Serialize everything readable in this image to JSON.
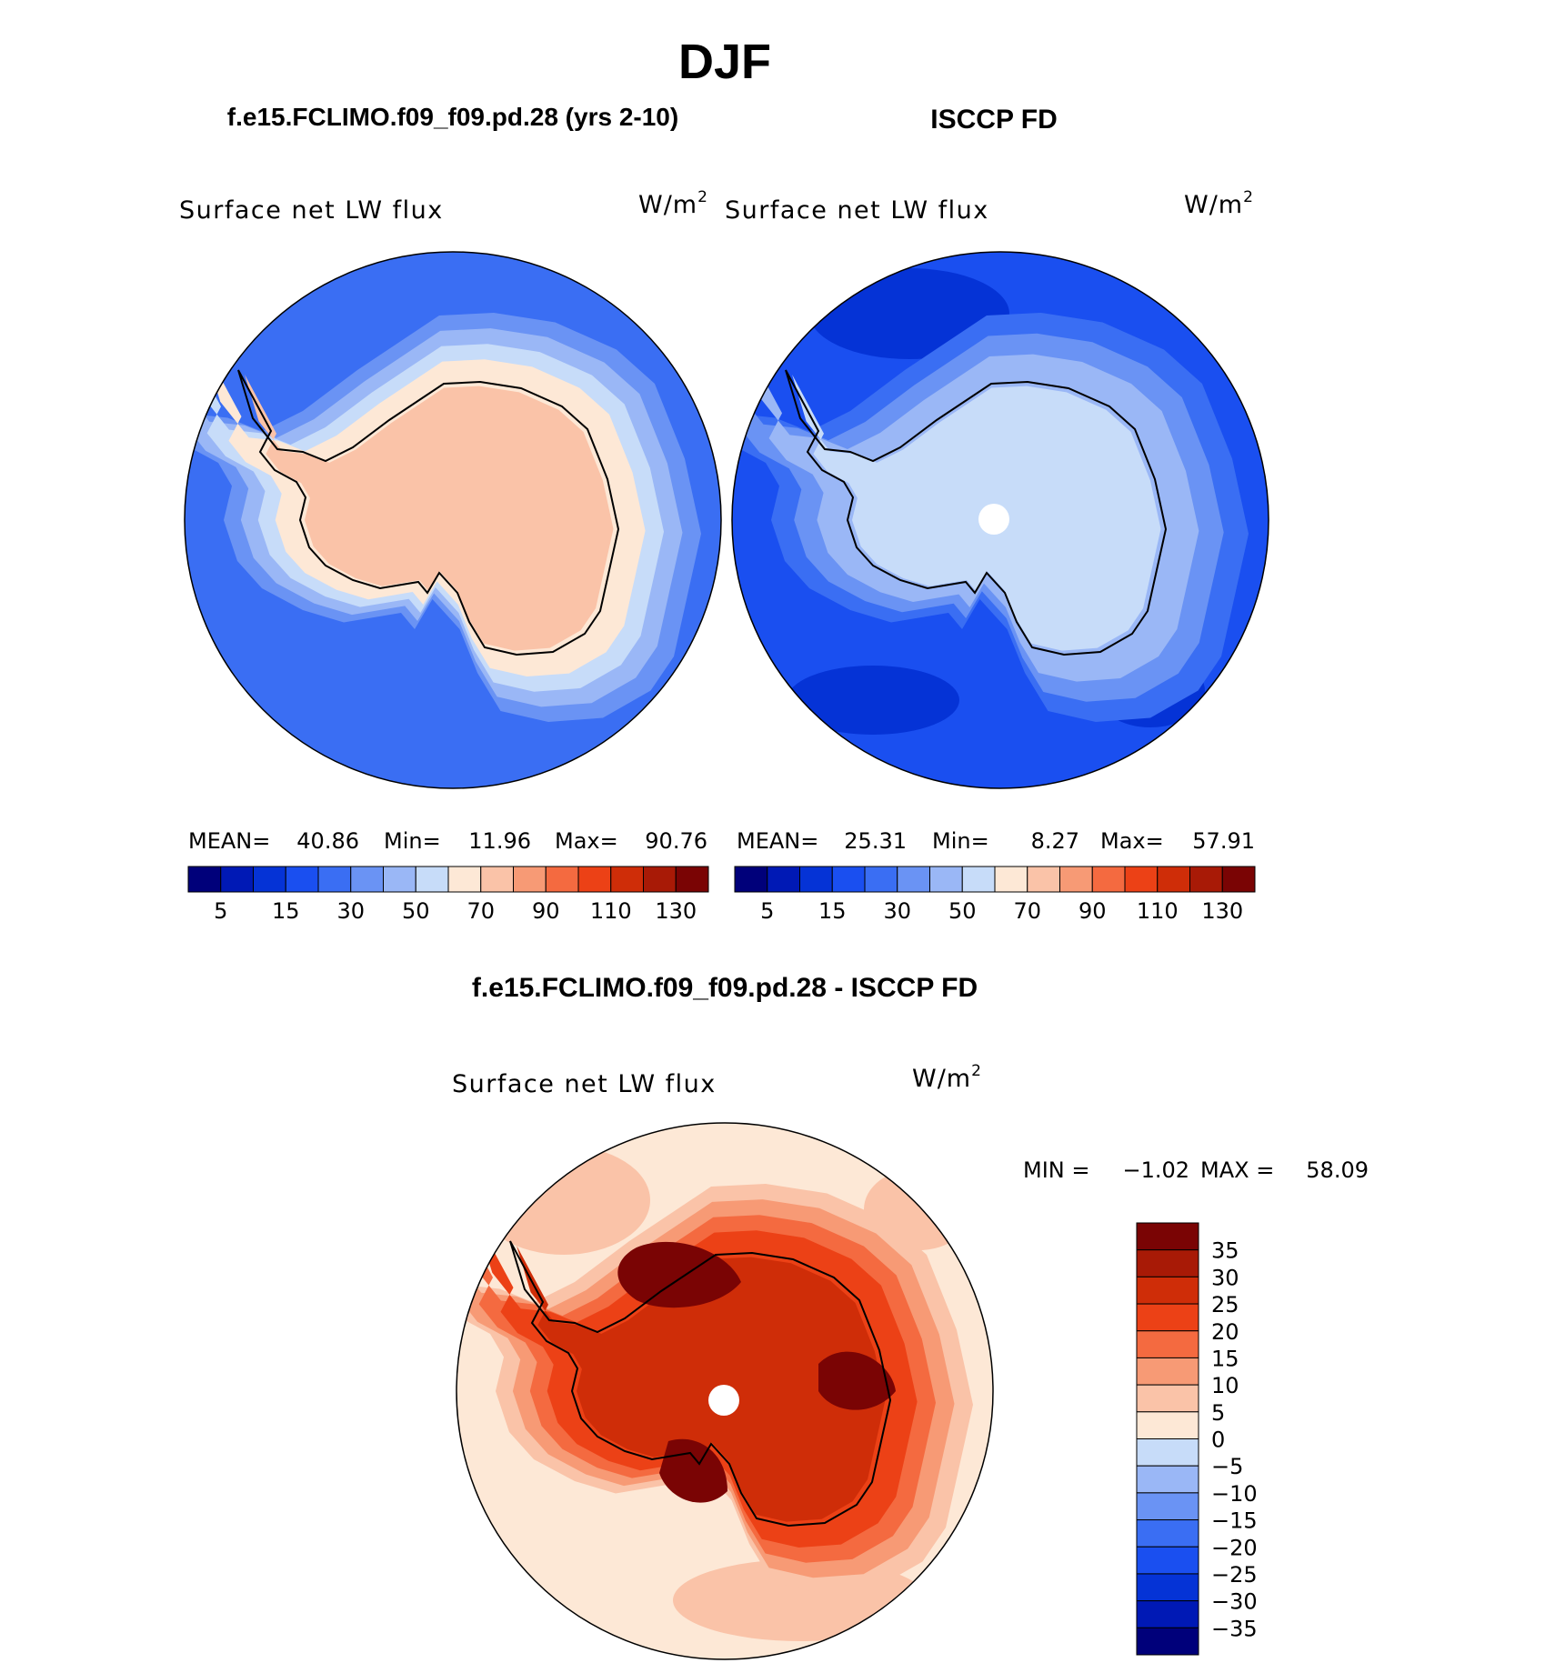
{
  "title": "DJF",
  "colors": {
    "coast": "#000000",
    "pole_hole": "#ffffff",
    "abs_scale": [
      "#00007a",
      "#0019b5",
      "#0533d6",
      "#1a4ff0",
      "#3a6ef3",
      "#6a93f4",
      "#9ab7f6",
      "#c7dcf9",
      "#fde8d6",
      "#fac3a8",
      "#f79a75",
      "#f46a40",
      "#ec4116",
      "#cf2d08",
      "#a81a06",
      "#7a0404"
    ],
    "diff_scale": [
      "#00007a",
      "#0019b5",
      "#0533d6",
      "#1a4ff0",
      "#3a6ef3",
      "#6a93f4",
      "#9ab7f6",
      "#c7dcf9",
      "#fde8d6",
      "#fac3a8",
      "#f79a75",
      "#f46a40",
      "#ec4116",
      "#cf2d08",
      "#a81a06",
      "#7a0404"
    ]
  },
  "panels": [
    {
      "id": "model",
      "header": "f.e15.FCLIMO.f09_f09.pd.28 (yrs 2-10)",
      "variable": "Surface net LW flux",
      "units_base": "W/m",
      "units_sup": "2",
      "stats": {
        "mean_label": "MEAN=",
        "mean": "40.86",
        "min_label": "Min=",
        "min": "11.96",
        "max_label": "Max=",
        "max": "90.76"
      },
      "colorbar_ticks": [
        "5",
        "15",
        "30",
        "50",
        "70",
        "90",
        "110",
        "130"
      ],
      "ocean_fill": "#3a6ef3",
      "bands": [
        "#6a93f4",
        "#9ab7f6",
        "#c7dcf9",
        "#fde8d6"
      ],
      "interior": "#fac3a8"
    },
    {
      "id": "obs",
      "header": "ISCCP FD",
      "variable": "Surface net LW flux",
      "units_base": "W/m",
      "units_sup": "2",
      "stats": {
        "mean_label": "MEAN=",
        "mean": "25.31",
        "min_label": "Min=",
        "min": "8.27",
        "max_label": "Max=",
        "max": "57.91"
      },
      "colorbar_ticks": [
        "5",
        "15",
        "30",
        "50",
        "70",
        "90",
        "110",
        "130"
      ],
      "ocean_fill": "#1a4ff0",
      "bands": [
        "#3a6ef3",
        "#6a93f4",
        "#9ab7f6"
      ],
      "interior": "#c7dcf9"
    }
  ],
  "difference": {
    "header": "f.e15.FCLIMO.f09_f09.pd.28 - ISCCP FD",
    "variable": "Surface net LW flux",
    "units_base": "W/m",
    "units_sup": "2",
    "min_label": "MIN =",
    "min": "−1.02",
    "max_label": "MAX =",
    "max": "58.09",
    "colorbar_ticks": [
      "35",
      "30",
      "25",
      "20",
      "15",
      "10",
      "5",
      "0",
      "−5",
      "−10",
      "−15",
      "−20",
      "−25",
      "−30",
      "−35"
    ],
    "ocean_fill": "#fde8d6",
    "bands": [
      "#fac3a8",
      "#f79a75",
      "#f46a40",
      "#ec4116"
    ],
    "interior": "#cf2d08",
    "hot": "#7a0404"
  }
}
